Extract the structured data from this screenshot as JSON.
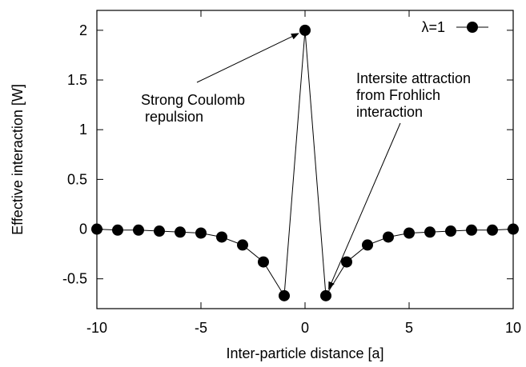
{
  "chart_data": {
    "type": "line",
    "xlabel": "Inter-particle distance [a]",
    "ylabel": "Effective interaction [W]",
    "xlim": [
      -10,
      10
    ],
    "ylim": [
      -0.8,
      2.2
    ],
    "xticks": [
      -10,
      -5,
      0,
      5,
      10
    ],
    "xtick_labels": [
      "-10",
      "-5",
      "0",
      "5",
      "10"
    ],
    "yticks": [
      -0.5,
      0,
      0.5,
      1,
      1.5,
      2
    ],
    "ytick_labels": [
      "-0.5",
      "0",
      "0.5",
      "1",
      "1.5",
      "2"
    ],
    "grid": false,
    "legend_position": "top-right",
    "series": [
      {
        "name": "λ=1",
        "marker": "filled-circle",
        "color": "#000000",
        "x": [
          -10,
          -9,
          -8,
          -7,
          -6,
          -5,
          -4,
          -3,
          -2,
          -1,
          0,
          1,
          2,
          3,
          4,
          5,
          6,
          7,
          8,
          9,
          10
        ],
        "y": [
          0.0,
          -0.01,
          -0.01,
          -0.02,
          -0.03,
          -0.04,
          -0.08,
          -0.16,
          -0.33,
          -0.67,
          2.0,
          -0.67,
          -0.33,
          -0.16,
          -0.08,
          -0.04,
          -0.03,
          -0.02,
          -0.01,
          -0.01,
          0.0
        ]
      }
    ],
    "annotations": [
      {
        "lines": [
          "Strong Coulomb",
          " repulsion"
        ],
        "arrow_to": [
          0,
          2.0
        ]
      },
      {
        "lines": [
          "Intersite attraction",
          "from Frohlich",
          "interaction"
        ],
        "arrow_to": [
          1,
          -0.67
        ]
      }
    ]
  }
}
